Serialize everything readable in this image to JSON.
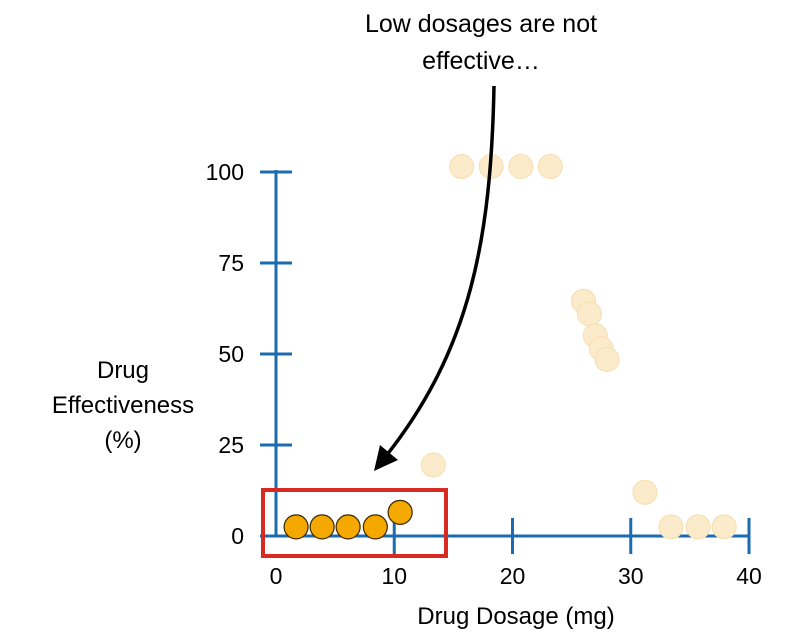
{
  "chart_data": {
    "type": "scatter",
    "title": "",
    "xlabel": "Drug Dosage (mg)",
    "ylabel_lines": [
      "Drug",
      "Effectiveness",
      "(%)"
    ],
    "xlim": [
      0,
      40
    ],
    "ylim": [
      0,
      100
    ],
    "x_ticks": [
      "0",
      "10",
      "20",
      "30",
      "40"
    ],
    "y_ticks": [
      "0",
      "25",
      "50",
      "75",
      "100"
    ],
    "grid": false,
    "series": [
      {
        "role": "highlighted",
        "color": "#F5A800",
        "points": [
          {
            "x": 1.7,
            "y": 2.5
          },
          {
            "x": 3.9,
            "y": 2.5
          },
          {
            "x": 6.1,
            "y": 2.5
          },
          {
            "x": 8.4,
            "y": 2.5
          },
          {
            "x": 10.5,
            "y": 6.5
          }
        ]
      },
      {
        "role": "faded",
        "color": "#FBEBCB",
        "points": [
          {
            "x": 13.3,
            "y": 19.5
          },
          {
            "x": 15.7,
            "y": 101.5
          },
          {
            "x": 18.2,
            "y": 101.5
          },
          {
            "x": 20.7,
            "y": 101.5
          },
          {
            "x": 23.2,
            "y": 101.5
          },
          {
            "x": 26.0,
            "y": 64.5
          },
          {
            "x": 26.5,
            "y": 61.0
          },
          {
            "x": 27.0,
            "y": 55.0
          },
          {
            "x": 27.5,
            "y": 51.5
          },
          {
            "x": 28.0,
            "y": 48.5
          },
          {
            "x": 31.2,
            "y": 12.0
          },
          {
            "x": 33.4,
            "y": 2.5
          },
          {
            "x": 35.7,
            "y": 2.5
          },
          {
            "x": 37.9,
            "y": 2.5
          }
        ]
      }
    ],
    "annotation": {
      "lines": [
        "Low dosages are not",
        "effective…"
      ],
      "box_color": "#D92A22"
    },
    "axis_color": "#1B6BB0"
  }
}
